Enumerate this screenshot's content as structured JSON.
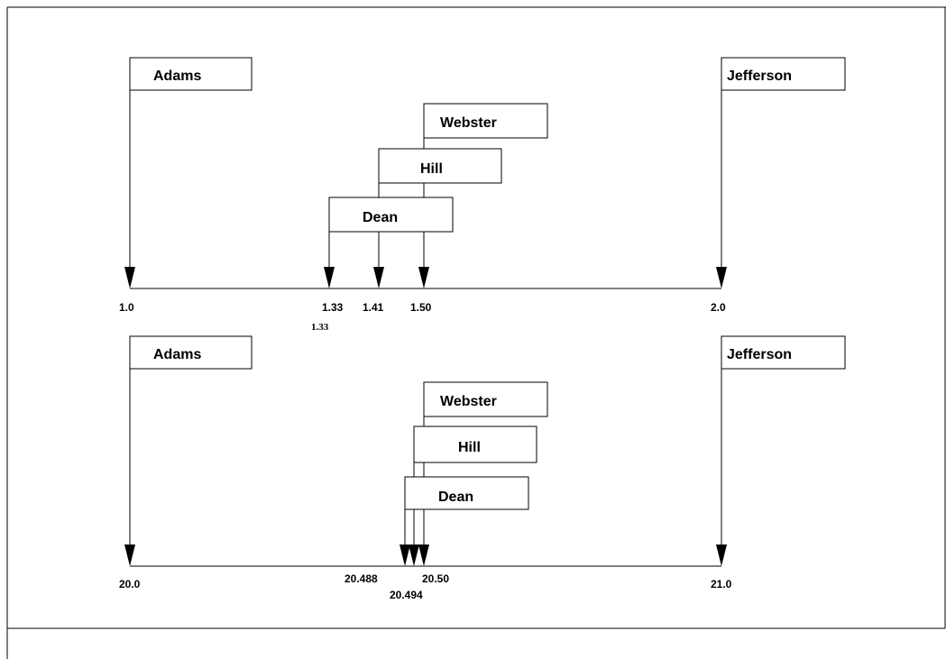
{
  "diagram": {
    "panels": [
      {
        "id": "top",
        "boxes": [
          {
            "id": "adams",
            "label": "Adams"
          },
          {
            "id": "jefferson",
            "label": "Jefferson"
          },
          {
            "id": "webster",
            "label": "Webster"
          },
          {
            "id": "hill",
            "label": "Hill"
          },
          {
            "id": "dean",
            "label": "Dean"
          }
        ],
        "ticks": [
          {
            "id": "t1",
            "value": "1.0"
          },
          {
            "id": "t2",
            "value": "1.33"
          },
          {
            "id": "t3",
            "value": "1.41"
          },
          {
            "id": "t4",
            "value": "1.50"
          },
          {
            "id": "t5",
            "value": "2.0"
          },
          {
            "id": "t6",
            "value": "1.33"
          }
        ]
      },
      {
        "id": "bottom",
        "boxes": [
          {
            "id": "adams",
            "label": "Adams"
          },
          {
            "id": "jefferson",
            "label": "Jefferson"
          },
          {
            "id": "webster",
            "label": "Webster"
          },
          {
            "id": "hill",
            "label": "Hill"
          },
          {
            "id": "dean",
            "label": "Dean"
          }
        ],
        "ticks": [
          {
            "id": "t1",
            "value": "20.0"
          },
          {
            "id": "t2",
            "value": "20.488"
          },
          {
            "id": "t3",
            "value": "20.50"
          },
          {
            "id": "t4",
            "value": "21.0"
          },
          {
            "id": "t5",
            "value": "20.494"
          }
        ]
      }
    ]
  }
}
